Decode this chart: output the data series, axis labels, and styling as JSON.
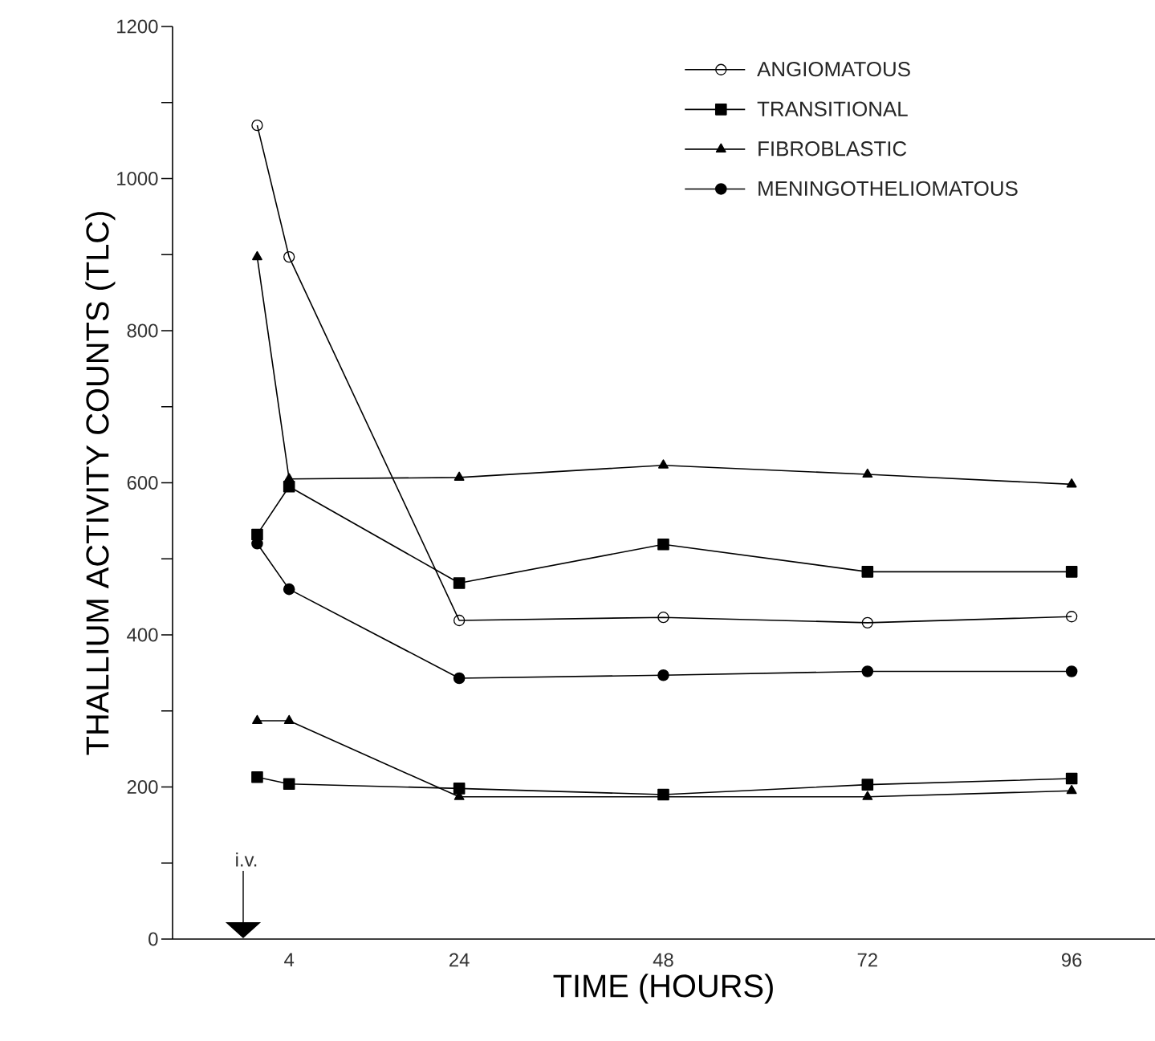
{
  "chart_data": {
    "type": "line",
    "xlabel": "TIME (HOURS)",
    "ylabel": "THALLIUM ACTIVITY COUNTS (TLC)",
    "xlim": [
      -9.7,
      105.8
    ],
    "xticks": [
      4,
      24,
      48,
      72,
      96
    ],
    "ylim": [
      0,
      1200
    ],
    "yticks": [
      0,
      {
        "value": 100,
        "label": null
      },
      200,
      {
        "value": 300,
        "label": null
      },
      400,
      {
        "value": 500,
        "label": null
      },
      600,
      {
        "value": 700,
        "label": null
      },
      800,
      {
        "value": 900,
        "label": null
      },
      1000,
      {
        "value": 1100,
        "label": null
      },
      1200
    ],
    "legend": "top right",
    "grid": false,
    "line_style": "solid",
    "annotations": [
      "i.v."
    ],
    "series": [
      {
        "name": "ANGIOMATOUS",
        "color": "#000000",
        "marker": "open circle",
        "x": [
          0.25,
          4,
          24,
          48,
          72,
          96
        ],
        "values": [
          1070,
          897,
          419,
          423,
          416,
          424
        ]
      },
      {
        "name": "TRANSITIONAL",
        "color": "#000000",
        "marker": "square",
        "x": [
          0.25,
          4,
          24,
          48,
          72,
          96
        ],
        "values": [
          532,
          595,
          468,
          519,
          483,
          483
        ]
      },
      {
        "name": "FIBROBLASTIC",
        "color": "#000000",
        "marker": "triangle",
        "x": [
          0.25,
          4,
          24,
          48,
          72,
          96
        ],
        "values": [
          897,
          605,
          607,
          623,
          611,
          598
        ]
      },
      {
        "name": "MENINGOTHELIOMATOUS",
        "color": "#000000",
        "marker": "circle",
        "x": [
          0.25,
          4,
          24,
          48,
          72,
          96
        ],
        "values": [
          520,
          460,
          343,
          347,
          352,
          352
        ]
      },
      {
        "color": "#000000",
        "marker": "square",
        "x": [
          0.25,
          4,
          24,
          48,
          72,
          96
        ],
        "values": [
          213,
          204,
          198,
          190,
          203,
          211
        ]
      },
      {
        "color": "#000000",
        "marker": "triangle",
        "x": [
          0.25,
          4,
          24,
          48,
          72,
          96
        ],
        "values": [
          287,
          287,
          187,
          187,
          187,
          195
        ]
      }
    ]
  }
}
